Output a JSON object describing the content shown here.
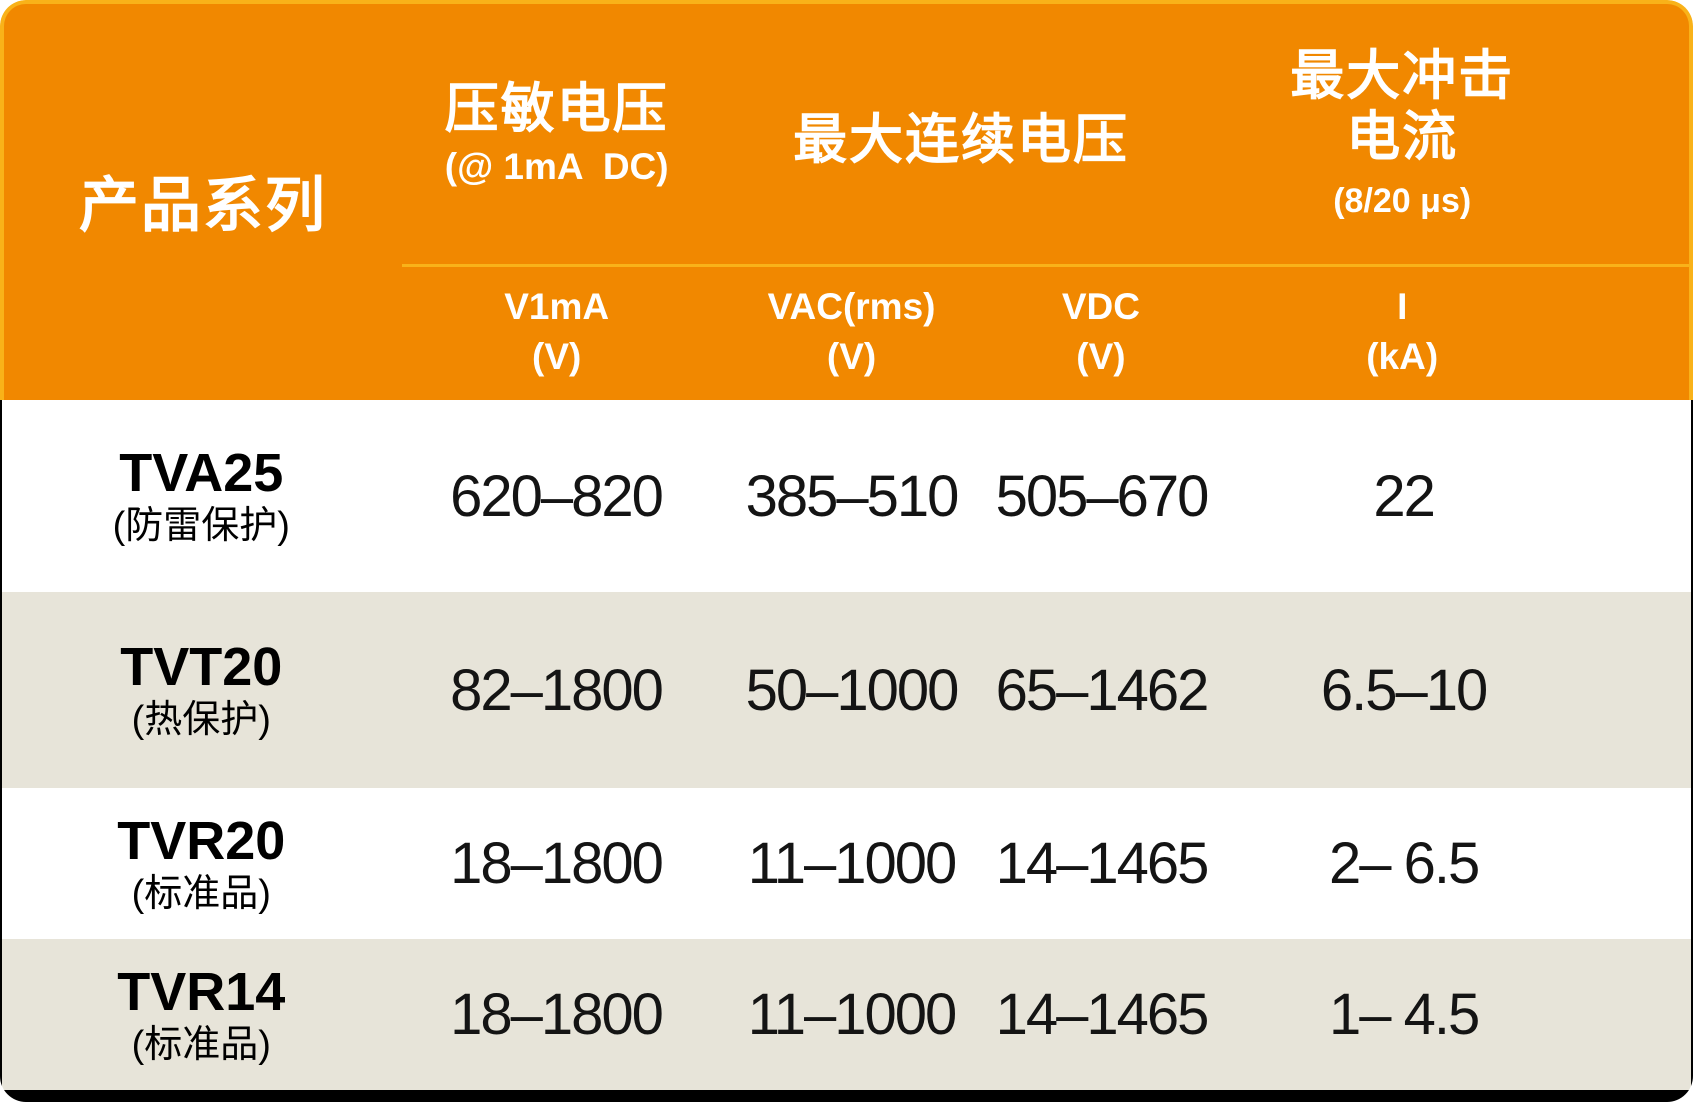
{
  "colors": {
    "header_orange": "#F18800",
    "header_border_gold": "#F9B219",
    "row_alt_beige": "#E7E4D9",
    "row_white": "#FFFFFF",
    "header_text": "#FFFFFF",
    "body_text": "#111111",
    "frame_black": "#000000"
  },
  "chart_data": {
    "type": "table",
    "header": {
      "product_series": "产品系列",
      "varistor_voltage": {
        "title": "压敏电压",
        "subtitle": "(@ 1mA  DC)"
      },
      "max_continuous_voltage": {
        "title": "最大连续电压"
      },
      "max_surge_current": {
        "title_line1": "最大冲击",
        "title_line2": "电流",
        "subtitle": "(8/20 μs)"
      },
      "subcolumns": [
        {
          "symbol": "V1mA",
          "unit": "(V)"
        },
        {
          "symbol": "VAC(rms)",
          "unit": "(V)"
        },
        {
          "symbol": "VDC",
          "unit": "(V)"
        },
        {
          "symbol": "I",
          "unit": "(kA)"
        }
      ]
    },
    "rows": [
      {
        "series": "TVA25",
        "note": "(防雷保护)",
        "v1ma_v": "620–820",
        "vac_rms_v": "385–510",
        "vdc_v": "505–670",
        "i_ka": "22"
      },
      {
        "series": "TVT20",
        "note": "(热保护)",
        "v1ma_v": "82–1800",
        "vac_rms_v": "50–1000",
        "vdc_v": "65–1462",
        "i_ka": "6.5–10"
      },
      {
        "series": "TVR20",
        "note": "(标准品)",
        "v1ma_v": "18–1800",
        "vac_rms_v": "11–1000",
        "vdc_v": "14–1465",
        "i_ka": "2– 6.5"
      },
      {
        "series": "TVR14",
        "note": "(标准品)",
        "v1ma_v": "18–1800",
        "vac_rms_v": "11–1000",
        "vdc_v": "14–1465",
        "i_ka": "1– 4.5"
      }
    ]
  }
}
